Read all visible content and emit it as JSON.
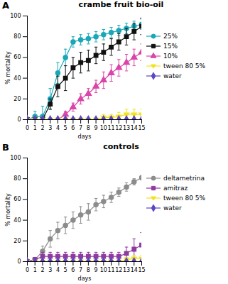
{
  "chart_data": [
    {
      "type": "line",
      "title": "crambe fruit bio-oil",
      "annotations": [
        "A"
      ],
      "x_label": "days",
      "y_label": "% mortality",
      "x": [
        0,
        1,
        2,
        3,
        4,
        5,
        6,
        7,
        8,
        9,
        10,
        11,
        12,
        13,
        14,
        15
      ],
      "xlim": [
        0,
        15
      ],
      "xticks": [
        0,
        1,
        2,
        3,
        4,
        5,
        6,
        7,
        8,
        9,
        10,
        11,
        12,
        13,
        14,
        15
      ],
      "ylim": [
        0,
        100
      ],
      "yticks": [
        0,
        20,
        40,
        60,
        80,
        100
      ],
      "grid": false,
      "legend": "right",
      "series": [
        {
          "name": "25%",
          "color": "#1aa7b8",
          "marker": "circle",
          "values": [
            0,
            3,
            3,
            20,
            45,
            60,
            75,
            77,
            78,
            80,
            82,
            84,
            86,
            88,
            90,
            92
          ],
          "errors": [
            0,
            5,
            10,
            10,
            10,
            8,
            5,
            5,
            5,
            5,
            5,
            5,
            5,
            5,
            5,
            5
          ]
        },
        {
          "name": "15%",
          "color": "#111111",
          "marker": "square",
          "values": [
            0,
            0,
            0,
            15,
            32,
            40,
            50,
            55,
            57,
            62,
            65,
            70,
            75,
            80,
            85,
            90
          ],
          "errors": [
            0,
            0,
            0,
            5,
            10,
            12,
            10,
            10,
            10,
            8,
            8,
            8,
            8,
            8,
            8,
            8
          ]
        },
        {
          "name": "10%",
          "color": "#d946a8",
          "marker": "triangle",
          "values": [
            0,
            0,
            0,
            0,
            0,
            5,
            12,
            20,
            25,
            32,
            38,
            45,
            50,
            55,
            60,
            65
          ],
          "errors": [
            0,
            0,
            0,
            0,
            0,
            3,
            4,
            5,
            5,
            6,
            8,
            8,
            8,
            8,
            8,
            8
          ]
        },
        {
          "name": "tween 80 5%",
          "color": "#f2e21c",
          "marker": "triangle-down",
          "values": [
            0,
            0,
            0,
            0,
            0,
            0,
            0,
            0,
            0,
            0,
            2,
            2,
            3,
            5,
            5,
            5
          ],
          "errors": [
            0,
            0,
            0,
            0,
            0,
            0,
            0,
            0,
            0,
            0,
            3,
            3,
            4,
            5,
            5,
            5
          ]
        },
        {
          "name": "water",
          "color": "#5a46c8",
          "marker": "diamond",
          "values": [
            0,
            0,
            0,
            0,
            0,
            0,
            0,
            0,
            0,
            0,
            0,
            0,
            0,
            0,
            0,
            0
          ],
          "errors": [
            0,
            0,
            0,
            0,
            0,
            0,
            0,
            0,
            0,
            0,
            0,
            0,
            0,
            0,
            0,
            0
          ]
        }
      ]
    },
    {
      "type": "line",
      "title": "controls",
      "annotations": [
        "B"
      ],
      "x_label": "days",
      "y_label": "% mortality",
      "x": [
        0,
        1,
        2,
        3,
        4,
        5,
        6,
        7,
        8,
        9,
        10,
        11,
        12,
        13,
        14,
        15
      ],
      "xlim": [
        0,
        15
      ],
      "xticks": [
        0,
        1,
        2,
        3,
        4,
        5,
        6,
        7,
        8,
        9,
        10,
        11,
        12,
        13,
        14,
        15
      ],
      "ylim": [
        0,
        100
      ],
      "yticks": [
        0,
        20,
        40,
        60,
        80,
        100
      ],
      "grid": false,
      "legend": "right",
      "series": [
        {
          "name": "deltametrina",
          "color": "#8c8c8c",
          "marker": "circle",
          "values": [
            0,
            2,
            10,
            22,
            30,
            35,
            40,
            45,
            48,
            55,
            58,
            62,
            67,
            72,
            77,
            81
          ],
          "errors": [
            0,
            2,
            5,
            8,
            8,
            8,
            8,
            8,
            8,
            6,
            6,
            5,
            4,
            4,
            3,
            2
          ]
        },
        {
          "name": "amitraz",
          "color": "#8e3b9e",
          "marker": "square",
          "values": [
            0,
            2,
            5,
            5,
            5,
            5,
            5,
            5,
            5,
            5,
            5,
            5,
            5,
            8,
            12,
            16
          ],
          "errors": [
            0,
            2,
            4,
            4,
            4,
            4,
            4,
            4,
            4,
            4,
            4,
            4,
            4,
            6,
            10,
            12
          ]
        },
        {
          "name": "tween 80 5%",
          "color": "#f2e21c",
          "marker": "triangle-down",
          "values": [
            0,
            0,
            0,
            0,
            0,
            0,
            0,
            0,
            0,
            0,
            0,
            0,
            0,
            2,
            3,
            3
          ],
          "errors": [
            0,
            0,
            0,
            0,
            0,
            0,
            0,
            0,
            0,
            0,
            0,
            0,
            0,
            2,
            3,
            3
          ]
        },
        {
          "name": "water",
          "color": "#5a46c8",
          "marker": "diamond",
          "values": [
            0,
            0,
            0,
            0,
            0,
            0,
            0,
            0,
            0,
            0,
            0,
            0,
            0,
            0,
            0,
            0
          ],
          "errors": [
            0,
            0,
            0,
            0,
            0,
            0,
            0,
            0,
            0,
            0,
            0,
            0,
            0,
            0,
            0,
            0
          ]
        }
      ]
    }
  ]
}
